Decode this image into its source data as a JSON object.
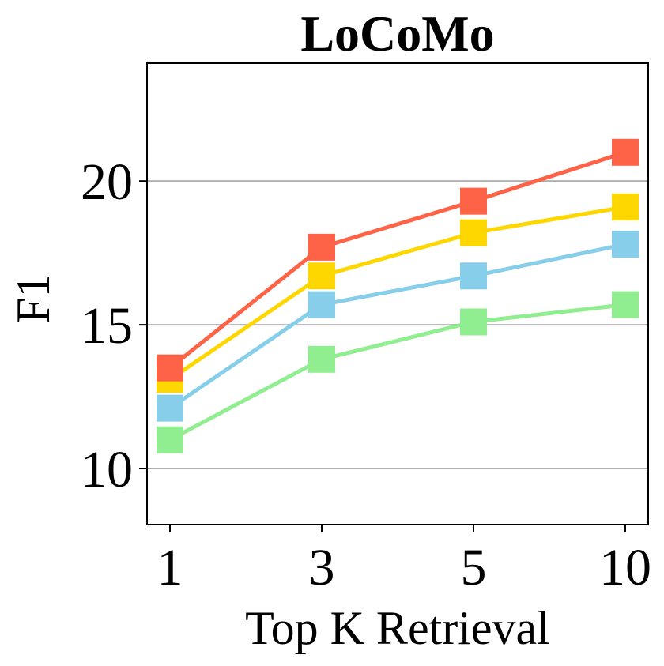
{
  "chart_data": {
    "type": "line",
    "title": "LoCoMo",
    "xlabel": "Top K Retrieval",
    "ylabel": "F1",
    "categories": [
      "1",
      "3",
      "5",
      "10"
    ],
    "yticks": [
      10,
      15,
      20
    ],
    "ylim": [
      8.05,
      24.1
    ],
    "grid": "horizontal",
    "series": [
      {
        "color": "#FF6347",
        "values": [
          13.5,
          17.7,
          19.3,
          21.0
        ]
      },
      {
        "color": "#FFD700",
        "values": [
          13.1,
          16.7,
          18.2,
          19.1
        ]
      },
      {
        "color": "#87CEEB",
        "values": [
          12.1,
          15.7,
          16.7,
          17.8
        ]
      },
      {
        "color": "#90EE90",
        "values": [
          11.0,
          13.8,
          15.1,
          15.7
        ]
      }
    ]
  }
}
